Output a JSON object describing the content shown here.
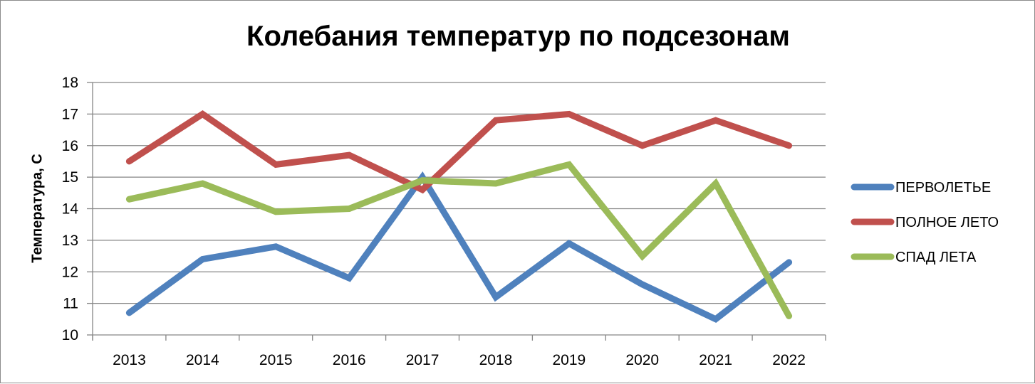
{
  "chart_data": {
    "type": "line",
    "title": "Колебания температур по подсезонам",
    "ylabel": "Температура, С",
    "xlabel": "",
    "categories": [
      "2013",
      "2014",
      "2015",
      "2016",
      "2017",
      "2018",
      "2019",
      "2020",
      "2021",
      "2022"
    ],
    "ylim": [
      10,
      18
    ],
    "yticks": [
      "10",
      "11",
      "12",
      "13",
      "14",
      "15",
      "16",
      "17",
      "18"
    ],
    "grid": true,
    "legend_position": "right",
    "series": [
      {
        "name": "ПЕРВОЛЕТЬЕ",
        "color": "#4f81bd",
        "values": [
          10.7,
          12.4,
          12.8,
          11.8,
          15.0,
          11.2,
          12.9,
          11.6,
          10.5,
          12.3
        ]
      },
      {
        "name": "ПОЛНОЕ ЛЕТО",
        "color": "#c0504d",
        "values": [
          15.5,
          17.0,
          15.4,
          15.7,
          14.6,
          16.8,
          17.0,
          16.0,
          16.8,
          16.0
        ]
      },
      {
        "name": "СПАД ЛЕТА",
        "color": "#9bbb59",
        "values": [
          14.3,
          14.8,
          13.9,
          14.0,
          14.9,
          14.8,
          15.4,
          12.5,
          14.8,
          10.6
        ]
      }
    ]
  }
}
